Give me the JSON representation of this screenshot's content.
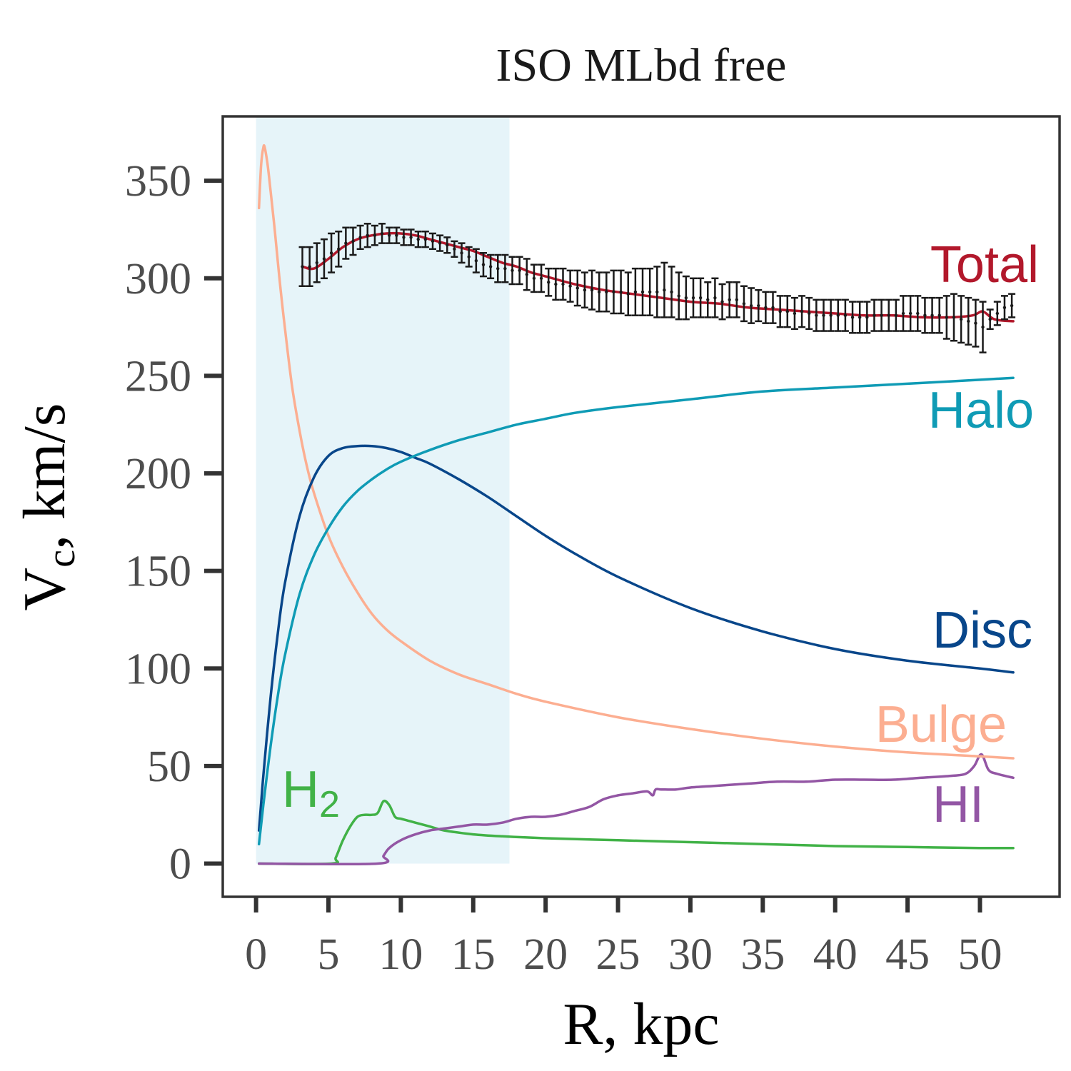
{
  "chart_data": {
    "type": "line",
    "title": "ISO MLbd free",
    "xlabel": "R, kpc",
    "ylabel_main": "V",
    "ylabel_sub": "c",
    "ylabel_rest": ", km/s",
    "xlim": [
      -2.3,
      55.5
    ],
    "ylim": [
      -17,
      383
    ],
    "xticks": [
      0,
      5,
      10,
      15,
      20,
      25,
      30,
      35,
      40,
      45,
      50
    ],
    "xtick_labels": [
      "0",
      "5",
      "10",
      "15",
      "20",
      "25",
      "30",
      "35",
      "40",
      "45",
      "50"
    ],
    "yticks": [
      0,
      50,
      100,
      150,
      200,
      250,
      300,
      350
    ],
    "ytick_labels": [
      "0",
      "50",
      "100",
      "150",
      "200",
      "250",
      "300",
      "350"
    ],
    "shaded_region": {
      "x": [
        0,
        17.5
      ],
      "y": [
        0,
        383
      ],
      "color": "#e6f4f9"
    },
    "series": [
      {
        "name": "Bulge",
        "label": "Bulge",
        "color": "#fcae91",
        "x": [
          0.2,
          0.35,
          0.5,
          0.6,
          0.8,
          1.0,
          1.3,
          1.6,
          2,
          2.5,
          3,
          3.5,
          4,
          5,
          6,
          7,
          8,
          9,
          10,
          12,
          14,
          16,
          18,
          20,
          25,
          30,
          35,
          40,
          45,
          50,
          52.3
        ],
        "y": [
          336,
          358,
          367,
          367,
          358,
          345,
          324,
          301,
          274,
          244,
          222,
          204,
          190,
          168,
          152,
          139,
          128,
          120,
          114,
          104,
          97,
          92,
          87,
          83,
          75,
          69,
          64,
          60,
          57,
          55,
          54
        ]
      },
      {
        "name": "Disc",
        "label": "Disc",
        "color": "#08468a",
        "x": [
          0.2,
          0.5,
          1,
          1.5,
          2,
          3,
          4,
          5,
          6,
          7,
          8,
          9,
          10,
          11,
          12,
          14,
          16,
          18,
          20,
          22,
          25,
          30,
          35,
          40,
          45,
          50,
          52.3
        ],
        "y": [
          17,
          45,
          85,
          118,
          144,
          178,
          198,
          209,
          213,
          214,
          214,
          213,
          211,
          208,
          205,
          197,
          188,
          178,
          168,
          159,
          147,
          131,
          119,
          110,
          104,
          100,
          98
        ]
      },
      {
        "name": "Halo",
        "label": "Halo",
        "color": "#0f9bb5",
        "x": [
          0.2,
          0.5,
          1,
          1.5,
          2,
          3,
          4,
          5,
          6,
          7,
          8,
          9,
          10,
          12,
          14,
          16,
          18,
          20,
          22,
          25,
          30,
          35,
          40,
          45,
          50,
          52.3
        ],
        "y": [
          10,
          30,
          60,
          86,
          107,
          138,
          158,
          172,
          183,
          191,
          197,
          202,
          206,
          212,
          217,
          221,
          225,
          228,
          231,
          234,
          238,
          242,
          244,
          246,
          248,
          249
        ]
      },
      {
        "name": "Total",
        "label": "Total",
        "color": "#b2182b",
        "x": [
          3.2,
          4,
          5,
          6,
          7,
          8,
          9,
          10,
          11,
          12,
          13,
          14,
          15,
          16,
          17,
          18,
          19,
          20,
          22,
          24,
          26,
          28,
          30,
          32,
          34,
          36,
          38,
          40,
          42,
          44,
          46,
          48,
          49.5,
          50.2,
          51,
          52.3
        ],
        "y": [
          306,
          305,
          310,
          316,
          320,
          322,
          323,
          323,
          322,
          320,
          318,
          316,
          314,
          311,
          308,
          306,
          303,
          301,
          297,
          294,
          292,
          290,
          288,
          287,
          285,
          284,
          283,
          282,
          281,
          281,
          280,
          280,
          281,
          283,
          279,
          278
        ]
      },
      {
        "name": "H2",
        "label": "H",
        "label_sub": "2",
        "color": "#41b247",
        "x": [
          0.2,
          5.2,
          5.5,
          6,
          6.5,
          7,
          7.5,
          8,
          8.4,
          8.8,
          9.2,
          9.6,
          10,
          10.5,
          11,
          12,
          13,
          15,
          17,
          20,
          25,
          30,
          35,
          40,
          45,
          50,
          52.3
        ],
        "y": [
          0,
          0,
          3,
          12,
          19,
          24,
          25,
          25,
          26,
          32,
          30,
          24,
          23,
          22,
          21,
          19,
          17,
          15,
          14,
          13,
          12,
          11,
          10,
          9,
          8.5,
          8,
          8
        ]
      },
      {
        "name": "HI",
        "label": "HI",
        "color": "#9356a4",
        "x": [
          0.2,
          8.4,
          8.8,
          9.2,
          10,
          11,
          12,
          13,
          14,
          15,
          16,
          17,
          18,
          19,
          20,
          21,
          22,
          23,
          24,
          25,
          26,
          27,
          27.4,
          27.6,
          28,
          29,
          30,
          32,
          34,
          36,
          38,
          40,
          42,
          44,
          46,
          48,
          49,
          49.6,
          50.1,
          50.6,
          51.2,
          52.3
        ],
        "y": [
          0,
          0,
          4,
          8,
          12,
          15,
          17,
          18,
          19,
          20,
          20,
          21,
          23,
          24,
          24,
          25,
          27,
          29,
          33,
          35,
          36,
          37,
          35,
          38,
          38,
          38,
          39,
          40,
          41,
          42,
          42,
          43,
          43,
          43,
          44,
          45,
          46,
          50,
          56,
          48,
          46,
          44
        ]
      }
    ],
    "observed": {
      "color": "#1a1a1a",
      "x": [
        3.2,
        3.7,
        4.2,
        4.7,
        5.2,
        5.7,
        6.2,
        6.7,
        7.2,
        7.7,
        8.2,
        8.7,
        9.2,
        9.7,
        10.2,
        10.7,
        11.2,
        11.7,
        12.2,
        12.7,
        13.2,
        13.7,
        14.2,
        14.7,
        15.2,
        15.7,
        16.2,
        16.7,
        17.2,
        17.7,
        18.2,
        18.7,
        19.2,
        19.7,
        20.2,
        20.7,
        21.2,
        21.7,
        22.2,
        22.7,
        23.2,
        23.7,
        24.2,
        24.7,
        25.2,
        25.7,
        26.2,
        26.7,
        27.2,
        27.7,
        28.2,
        28.7,
        29.2,
        29.7,
        30.2,
        30.7,
        31.2,
        31.7,
        32.2,
        32.7,
        33.2,
        33.7,
        34.2,
        34.7,
        35.2,
        35.7,
        36.2,
        36.7,
        37.2,
        37.7,
        38.2,
        38.7,
        39.2,
        39.7,
        40.2,
        40.7,
        41.2,
        41.7,
        42.2,
        42.7,
        43.2,
        43.7,
        44.2,
        44.7,
        45.2,
        45.7,
        46.2,
        46.7,
        47.2,
        47.7,
        48.2,
        48.7,
        49.2,
        49.7,
        50.2,
        50.7,
        51.2,
        51.7,
        52.2
      ],
      "y": [
        306,
        306,
        308,
        310,
        313,
        315,
        318,
        319,
        321,
        322,
        322,
        323,
        322,
        322,
        321,
        321,
        320,
        320,
        319,
        318,
        317,
        315,
        313,
        311,
        309,
        307,
        306,
        305,
        305,
        304,
        304,
        302,
        300,
        300,
        298,
        297,
        297,
        296,
        295,
        294,
        294,
        293,
        293,
        293,
        293,
        292,
        293,
        293,
        293,
        293,
        294,
        293,
        291,
        290,
        290,
        290,
        289,
        290,
        288,
        289,
        289,
        287,
        286,
        286,
        285,
        285,
        283,
        283,
        282,
        283,
        282,
        281,
        281,
        281,
        281,
        281,
        280,
        280,
        280,
        281,
        281,
        281,
        281,
        282,
        282,
        282,
        281,
        281,
        281,
        280,
        280,
        279,
        278,
        277,
        275,
        279,
        282,
        285,
        286
      ],
      "err": [
        10,
        10,
        10,
        10,
        10,
        9,
        8,
        7,
        6,
        6,
        5,
        5,
        4,
        4,
        4,
        4,
        4,
        4,
        4,
        4,
        4,
        4,
        5,
        5,
        6,
        6,
        6,
        7,
        7,
        7,
        7,
        8,
        7,
        7,
        7,
        8,
        8,
        8,
        9,
        9,
        10,
        10,
        10,
        11,
        11,
        11,
        12,
        12,
        12,
        13,
        14,
        13,
        12,
        11,
        10,
        10,
        9,
        10,
        9,
        9,
        9,
        9,
        9,
        8,
        8,
        8,
        8,
        8,
        8,
        8,
        8,
        8,
        8,
        8,
        8,
        8,
        8,
        8,
        8,
        8,
        8,
        8,
        8,
        9,
        9,
        9,
        9,
        9,
        9,
        11,
        12,
        12,
        12,
        12,
        13,
        5,
        6,
        6,
        6
      ]
    }
  }
}
